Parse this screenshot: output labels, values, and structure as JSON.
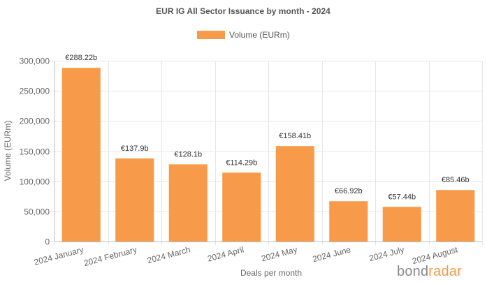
{
  "chart_data": {
    "type": "bar",
    "title": "EUR IG All Sector Issuance by month - 2024",
    "categories": [
      "2024 January",
      "2024 February",
      "2024 March",
      "2024 April",
      "2024 May",
      "2024 June",
      "2024 July",
      "2024 August"
    ],
    "series": [
      {
        "name": "Volume (EURm)",
        "values": [
          288220,
          137900,
          128100,
          114290,
          158410,
          66920,
          57440,
          85460
        ],
        "data_labels": [
          "€288.22b",
          "€137.9b",
          "€128.1b",
          "€114.29b",
          "€158.41b",
          "€66.92b",
          "€57.44b",
          "€85.46b"
        ],
        "color": "#f79b4a"
      }
    ],
    "xlabel": "Deals per month",
    "ylabel": "Volume (EURm)",
    "ylim": [
      0,
      300000
    ],
    "yticks": [
      0,
      50000,
      100000,
      150000,
      200000,
      250000,
      300000
    ],
    "ytick_labels": [
      "0",
      "50,000",
      "100,000",
      "150,000",
      "200,000",
      "250,000",
      "300,000"
    ],
    "grid": true,
    "legend_position": "top"
  },
  "brand": {
    "prefix": "bond",
    "accent": "radar"
  },
  "colors": {
    "bar": "#f79b4a",
    "grid": "#e6e6e6"
  }
}
